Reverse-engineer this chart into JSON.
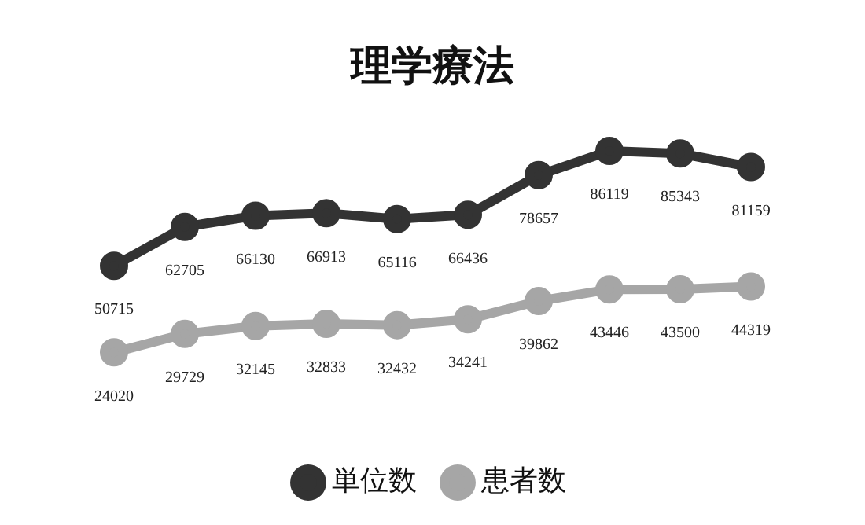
{
  "chart_data": {
    "type": "line",
    "title": "理学療法",
    "categories": [
      null,
      null,
      null,
      null,
      null,
      null,
      null,
      null,
      null,
      null
    ],
    "series": [
      {
        "name": "単位数",
        "color": "#333333",
        "values": [
          50715,
          62705,
          66130,
          66913,
          65116,
          66436,
          78657,
          86119,
          85343,
          81159
        ]
      },
      {
        "name": "患者数",
        "color": "#a6a6a6",
        "values": [
          24020,
          29729,
          32145,
          32833,
          32432,
          34241,
          39862,
          43446,
          43500,
          44319
        ]
      }
    ],
    "data_labels": true,
    "legend": "bottom",
    "marker": "circle",
    "line_style": "solid"
  }
}
